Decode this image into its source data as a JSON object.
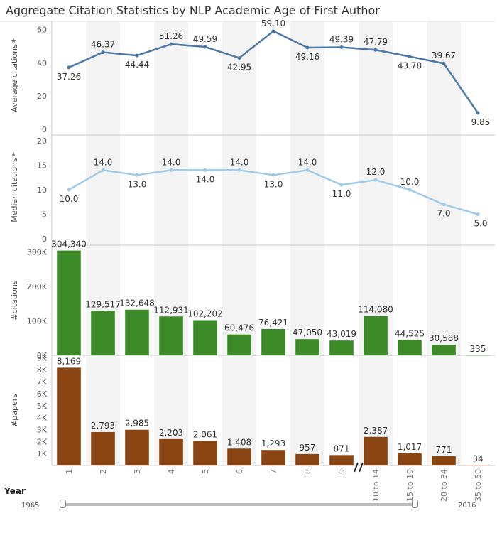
{
  "title": "Aggregate Citation Statistics by NLP Academic Age of First Author",
  "chart_data": {
    "type": "combo",
    "categories": [
      "1",
      "2",
      "3",
      "4",
      "5",
      "6",
      "7",
      "8",
      "9",
      "10 to 14",
      "15 to 19",
      "20 to 34",
      "35 to 50"
    ],
    "panels": [
      {
        "type": "line",
        "ylabel": "Average citations",
        "ylim": [
          0,
          65
        ],
        "yticks": [
          0,
          20,
          40,
          60
        ],
        "tick_labels": [
          "0",
          "20",
          "40",
          "60"
        ],
        "values": [
          37.26,
          46.37,
          44.44,
          51.26,
          49.59,
          42.95,
          59.1,
          49.16,
          49.39,
          47.79,
          43.78,
          39.67,
          9.85
        ],
        "labels": [
          "37.26",
          "46.37",
          "44.44",
          "51.26",
          "49.59",
          "42.95",
          "59.10",
          "49.16",
          "49.39",
          "47.79",
          "43.78",
          "39.67",
          "9.85"
        ],
        "color": "#4e79a7"
      },
      {
        "type": "line",
        "ylabel": "Median citations",
        "ylim": [
          0,
          20
        ],
        "yticks": [
          0,
          5,
          10,
          15,
          20
        ],
        "tick_labels": [
          "0",
          "5",
          "10",
          "15",
          "20"
        ],
        "values": [
          10.0,
          14.0,
          13.0,
          14.0,
          14.0,
          14.0,
          13.0,
          14.0,
          11.0,
          12.0,
          10.0,
          7.0,
          5.0
        ],
        "labels": [
          "10.0",
          "14.0",
          "13.0",
          "14.0",
          "14.0",
          "14.0",
          "13.0",
          "14.0",
          "11.0",
          "12.0",
          "10.0",
          "7.0",
          "5.0"
        ],
        "color": "#a0cbe8"
      },
      {
        "type": "bar",
        "ylabel": "#citations",
        "ylim": [
          0,
          320000
        ],
        "yticks": [
          0,
          100000,
          200000,
          300000
        ],
        "tick_labels": [
          "0K",
          "100K",
          "200K",
          "300K"
        ],
        "values": [
          304340,
          129517,
          132648,
          112931,
          102202,
          60476,
          76421,
          47050,
          43019,
          114080,
          44525,
          30588,
          335
        ],
        "labels": [
          "304,340",
          "129,517",
          "132,648",
          "112,931",
          "102,202",
          "60,476",
          "76,421",
          "47,050",
          "43,019",
          "114,080",
          "44,525",
          "30,588",
          "335"
        ],
        "color": "#3c8b28"
      },
      {
        "type": "bar",
        "ylabel": "#papers",
        "ylim": [
          0,
          9200
        ],
        "yticks": [
          1000,
          2000,
          3000,
          4000,
          5000,
          6000,
          7000,
          8000,
          9000
        ],
        "tick_labels": [
          "1K",
          "2K",
          "3K",
          "4K",
          "5K",
          "6K",
          "7K",
          "8K",
          "9K"
        ],
        "values": [
          8169,
          2793,
          2985,
          2203,
          2061,
          1408,
          1293,
          957,
          871,
          2387,
          1017,
          771,
          34
        ],
        "labels": [
          "8,169",
          "2,793",
          "2,985",
          "2,203",
          "2,061",
          "1,408",
          "1,293",
          "957",
          "871",
          "2,387",
          "1,017",
          "771",
          "34"
        ],
        "color": "#8b4513"
      }
    ],
    "grid": false
  },
  "filter": {
    "label": "Year",
    "start": "1965",
    "end": "2016"
  }
}
